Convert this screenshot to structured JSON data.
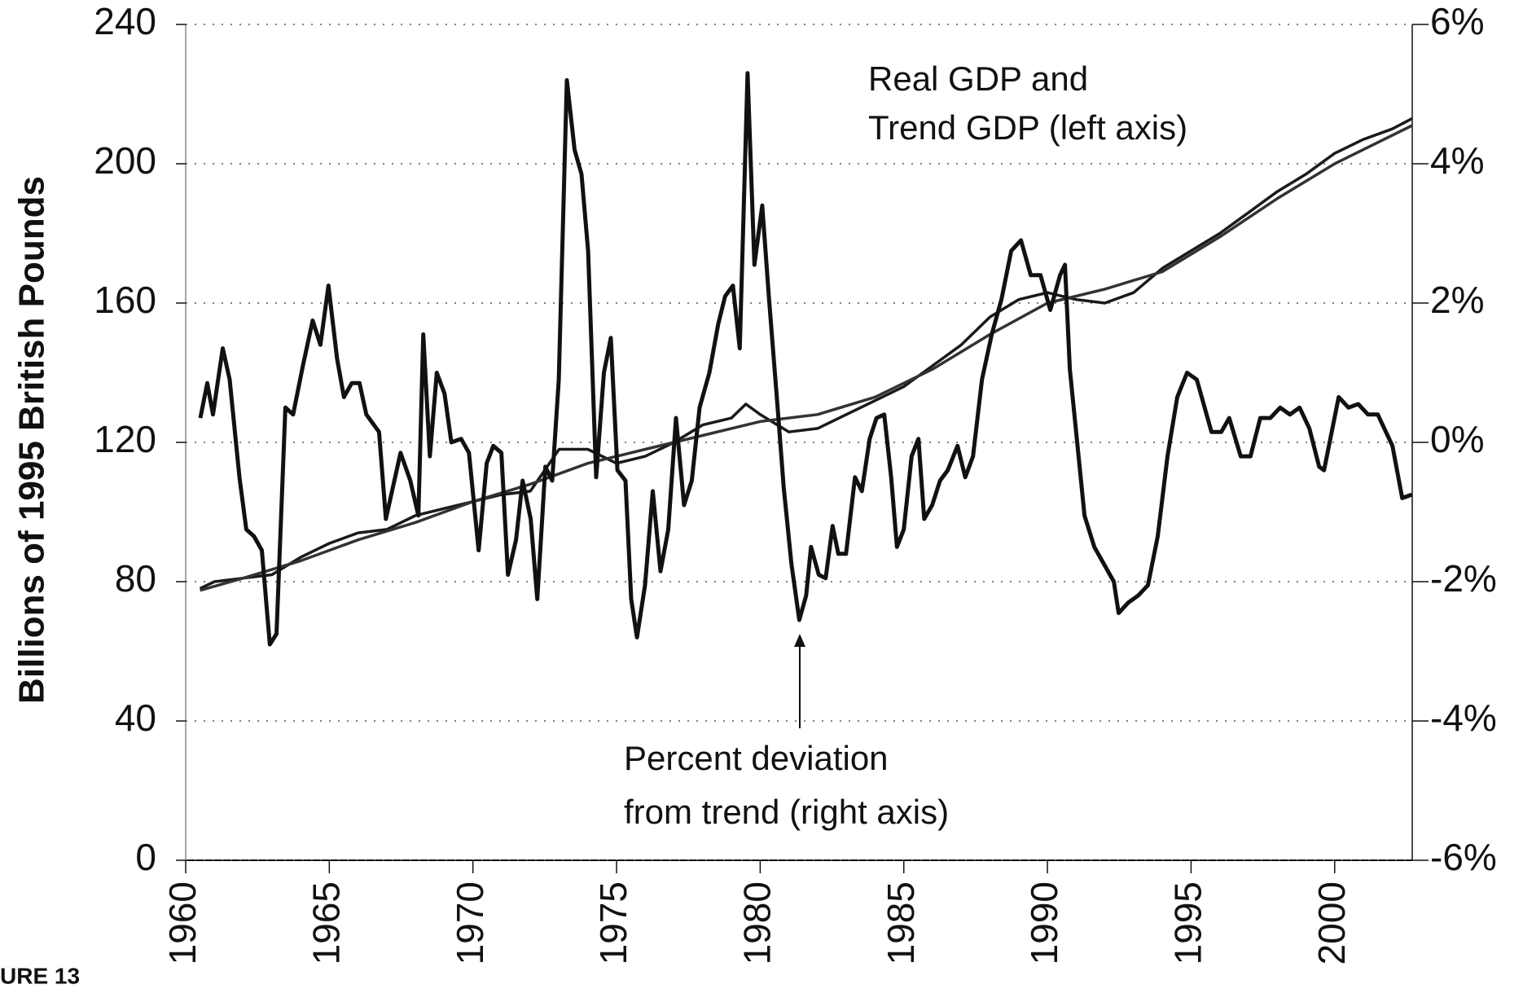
{
  "chart_data": {
    "type": "line",
    "ylabel": "Billions of 1995 British Pounds",
    "figure_label": "URE 13",
    "annotations": [
      [
        "Real GDP and",
        "Trend GDP (left axis)"
      ],
      [
        "Percent deviation",
        "from trend (right axis)"
      ]
    ],
    "xlim": [
      1960,
      2002.7
    ],
    "xticks": [
      1960,
      1965,
      1970,
      1975,
      1980,
      1985,
      1990,
      1995,
      2000
    ],
    "ylim": [
      0,
      240
    ],
    "yticks": [
      0,
      40,
      80,
      120,
      160,
      200,
      240
    ],
    "y2lim": [
      -6,
      6
    ],
    "y2ticks": [
      {
        "value": -6,
        "label": "-6%"
      },
      {
        "value": -4,
        "label": "-4%"
      },
      {
        "value": -2,
        "label": "-2%"
      },
      {
        "value": 0,
        "label": "0%"
      },
      {
        "value": 2,
        "label": "2%"
      },
      {
        "value": 4,
        "label": "4%"
      },
      {
        "value": 6,
        "label": "6%"
      }
    ],
    "grid": true,
    "series": [
      {
        "color": "#1a1a1a",
        "axis": "y",
        "x": [
          1960.5,
          1961,
          1962,
          1963,
          1964,
          1965,
          1966,
          1967,
          1968,
          1969,
          1970,
          1971,
          1972,
          1973,
          1974,
          1975,
          1976,
          1977,
          1978,
          1979,
          1979.5,
          1980,
          1981,
          1982,
          1983,
          1984,
          1985,
          1986,
          1987,
          1988,
          1989,
          1990,
          1991,
          1992,
          1993,
          1994,
          1995,
          1996,
          1997,
          1998,
          1999,
          2000,
          2001,
          2002,
          2002.7
        ],
        "values": [
          78,
          80,
          81,
          82,
          87,
          91,
          94,
          95,
          99,
          101,
          103,
          105,
          106,
          118,
          118,
          114,
          116,
          120,
          125,
          127,
          131,
          128,
          123,
          124,
          128,
          132,
          136,
          142,
          148,
          156,
          161,
          163,
          161,
          160,
          163,
          170,
          175,
          180,
          186,
          192,
          197,
          203,
          207,
          210,
          213
        ]
      },
      {
        "color": "#333333",
        "axis": "y",
        "x": [
          1960.5,
          1962,
          1964,
          1966,
          1968,
          1970,
          1972,
          1974,
          1976,
          1978,
          1980,
          1982,
          1984,
          1986,
          1988,
          1990,
          1992,
          1994,
          1996,
          1998,
          2000,
          2002.7
        ],
        "values": [
          77.5,
          81,
          86,
          92,
          97,
          103,
          108,
          114,
          118,
          122,
          126,
          128,
          133,
          141,
          151,
          160,
          164,
          169,
          179,
          190,
          200,
          211
        ]
      },
      {
        "color": "#111111",
        "axis": "y2",
        "x": [
          1960.51,
          1960.75,
          1960.95,
          1961.29,
          1961.53,
          1961.87,
          1962.11,
          1962.38,
          1962.65,
          1962.93,
          1963.16,
          1963.47,
          1963.74,
          1964.08,
          1964.42,
          1964.69,
          1964.97,
          1965.27,
          1965.51,
          1965.78,
          1966.05,
          1966.29,
          1966.73,
          1966.97,
          1967.48,
          1967.82,
          1968.1,
          1968.27,
          1968.5,
          1968.74,
          1969.01,
          1969.25,
          1969.59,
          1969.86,
          1970.2,
          1970.48,
          1970.71,
          1970.99,
          1971.22,
          1971.5,
          1971.73,
          1972.01,
          1972.24,
          1972.52,
          1972.76,
          1972.99,
          1973.27,
          1973.54,
          1973.78,
          1974.01,
          1974.29,
          1974.56,
          1974.8,
          1975.03,
          1975.31,
          1975.51,
          1975.71,
          1975.99,
          1976.26,
          1976.53,
          1976.8,
          1977.07,
          1977.35,
          1977.62,
          1977.89,
          1978.23,
          1978.54,
          1978.78,
          1979.05,
          1979.29,
          1979.56,
          1979.8,
          1980.07,
          1980.31,
          1980.58,
          1980.82,
          1981.09,
          1981.36,
          1981.6,
          1981.77,
          1982.04,
          1982.28,
          1982.52,
          1982.72,
          1982.99,
          1983.3,
          1983.54,
          1983.81,
          1984.05,
          1984.32,
          1984.56,
          1984.76,
          1985.0,
          1985.27,
          1985.51,
          1985.71,
          1985.99,
          1986.26,
          1986.53,
          1986.87,
          1987.14,
          1987.41,
          1987.72,
          1988.06,
          1988.4,
          1988.74,
          1989.08,
          1989.42,
          1989.76,
          1990.1,
          1990.44,
          1990.61,
          1990.78,
          1990.95,
          1991.29,
          1991.63,
          1991.97,
          1992.31,
          1992.48,
          1992.82,
          1993.16,
          1993.5,
          1993.84,
          1994.18,
          1994.52,
          1994.86,
          1995.2,
          1995.71,
          1996.05,
          1996.33,
          1996.73,
          1997.07,
          1997.41,
          1997.76,
          1998.1,
          1998.44,
          1998.78,
          1999.12,
          1999.46,
          1999.63,
          2000.14,
          2000.48,
          2000.82,
          2001.16,
          2001.5,
          2002.01,
          2002.35,
          2002.69
        ],
        "values": [
          0.35,
          0.85,
          0.4,
          1.35,
          0.9,
          -0.5,
          -1.25,
          -1.35,
          -1.55,
          -2.9,
          -2.75,
          0.5,
          0.4,
          1.1,
          1.75,
          1.4,
          2.25,
          1.2,
          0.65,
          0.85,
          0.85,
          0.4,
          0.15,
          -1.1,
          -0.15,
          -0.55,
          -1.05,
          1.55,
          -0.2,
          1.0,
          0.7,
          0,
          0.05,
          -0.15,
          -1.55,
          -0.3,
          -0.05,
          -0.15,
          -1.9,
          -1.4,
          -0.55,
          -1.1,
          -2.25,
          -0.35,
          -0.55,
          0.9,
          5.2,
          4.2,
          3.85,
          2.75,
          -0.5,
          1.0,
          1.5,
          -0.4,
          -0.55,
          -2.25,
          -2.8,
          -2.05,
          -0.7,
          -1.85,
          -1.25,
          0.35,
          -0.9,
          -0.55,
          0.5,
          1.0,
          1.7,
          2.1,
          2.25,
          1.35,
          5.3,
          2.55,
          3.4,
          2.05,
          0.65,
          -0.65,
          -1.75,
          -2.55,
          -2.2,
          -1.5,
          -1.9,
          -1.95,
          -1.2,
          -1.6,
          -1.6,
          -0.5,
          -0.7,
          0.05,
          0.35,
          0.4,
          -0.5,
          -1.5,
          -1.25,
          -0.2,
          0.05,
          -1.1,
          -0.9,
          -0.55,
          -0.4,
          -0.05,
          -0.5,
          -0.2,
          0.9,
          1.55,
          2.05,
          2.75,
          2.9,
          2.4,
          2.4,
          1.9,
          2.4,
          2.55,
          1.05,
          0.35,
          -1.05,
          -1.5,
          -1.75,
          -2.0,
          -2.45,
          -2.3,
          -2.2,
          -2.05,
          -1.35,
          -0.2,
          0.65,
          1.0,
          0.9,
          0.15,
          0.15,
          0.35,
          -0.2,
          -0.2,
          0.35,
          0.35,
          0.5,
          0.4,
          0.5,
          0.2,
          -0.35,
          -0.4,
          0.65,
          0.5,
          0.55,
          0.4,
          0.4,
          -0.05,
          -0.8,
          -0.75
        ]
      }
    ]
  }
}
